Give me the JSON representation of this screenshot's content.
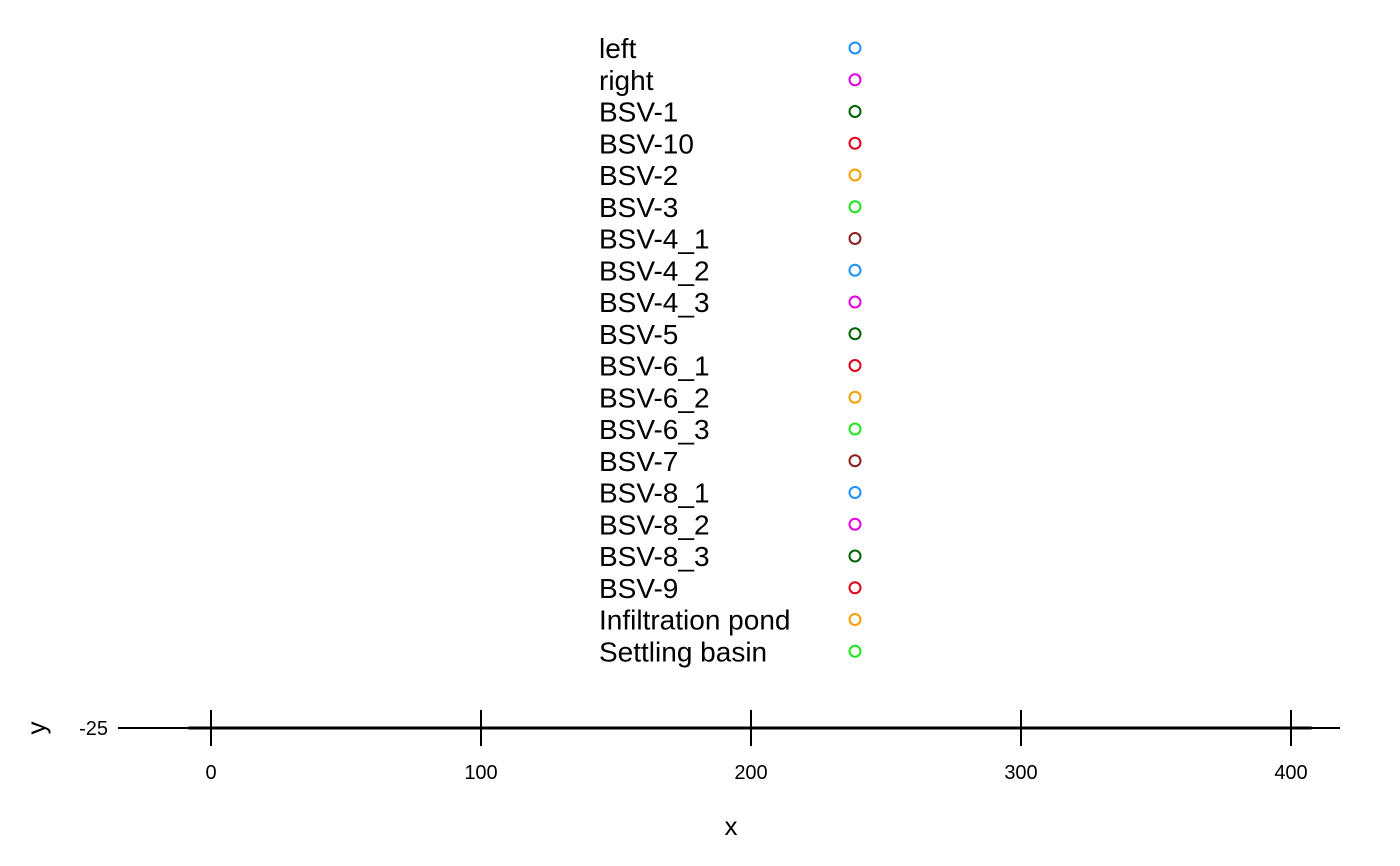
{
  "chart_data": {
    "type": "scatter",
    "title": "",
    "xlabel": "x",
    "ylabel": "y",
    "xlim": [
      -25,
      418
    ],
    "x_ticks": [
      0,
      100,
      200,
      300,
      400
    ],
    "y_ticks": [
      -25
    ],
    "grid": false,
    "legend_position": "top-center",
    "legend_marker": "open-circle",
    "legend": [
      {
        "name": "left",
        "color": "#1E90FF"
      },
      {
        "name": "right",
        "color": "#E000E0"
      },
      {
        "name": "BSV-1",
        "color": "#006400"
      },
      {
        "name": "BSV-10",
        "color": "#E0001A"
      },
      {
        "name": "BSV-2",
        "color": "#F5A000"
      },
      {
        "name": "BSV-3",
        "color": "#1EE61E"
      },
      {
        "name": "BSV-4_1",
        "color": "#8B2020"
      },
      {
        "name": "BSV-4_2",
        "color": "#1E90FF"
      },
      {
        "name": "BSV-4_3",
        "color": "#E000E0"
      },
      {
        "name": "BSV-5",
        "color": "#006400"
      },
      {
        "name": "BSV-6_1",
        "color": "#E0001A"
      },
      {
        "name": "BSV-6_2",
        "color": "#F5A000"
      },
      {
        "name": "BSV-6_3",
        "color": "#1EE61E"
      },
      {
        "name": "BSV-7",
        "color": "#8B2020"
      },
      {
        "name": "BSV-8_1",
        "color": "#1E90FF"
      },
      {
        "name": "BSV-8_2",
        "color": "#E000E0"
      },
      {
        "name": "BSV-8_3",
        "color": "#006400"
      },
      {
        "name": "BSV-9",
        "color": "#E0001A"
      },
      {
        "name": "Infiltration pond",
        "color": "#F5A000"
      },
      {
        "name": "Settling basin",
        "color": "#1EE61E"
      }
    ],
    "series": [
      {
        "name": "",
        "color": "#000000",
        "style": "line",
        "x": [
          -25,
          418
        ],
        "y": [
          -25,
          -25
        ]
      }
    ]
  }
}
